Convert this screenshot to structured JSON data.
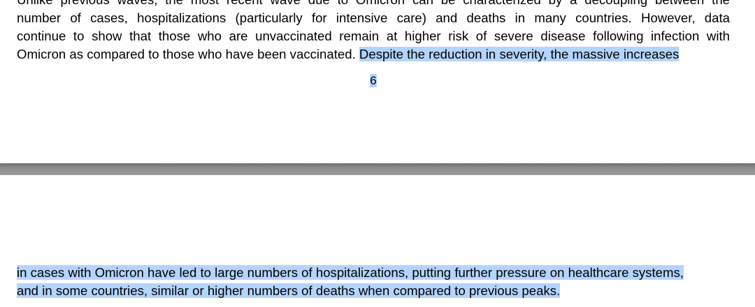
{
  "document": {
    "page_top": {
      "partial_line": "Unlike previous waves, the most recent wave due to Omicron can be characterized by a decoupling between the",
      "line_1": "number of cases, hospitalizations (particularly for intensive care) and deaths in many countries. However, data",
      "line_2": "continue to show that those who are unvaccinated remain at higher risk of severe disease following infection with",
      "line_3_plain": "Omicron as compared to those who have been vaccinated.",
      "line_3_highlighted": "Despite the reduction in severity, the massive increases",
      "page_number": "6"
    },
    "page_bottom": {
      "line_1": "in cases with Omicron have led to large numbers of hospitalizations, putting further pressure on healthcare systems,",
      "line_2": "and in some countries, similar or higher numbers of deaths when compared to previous peaks."
    },
    "colors": {
      "selection_highlight": "#b3d4fd",
      "page_gap": "#8a8a8a",
      "page_background": "#ffffff"
    }
  }
}
